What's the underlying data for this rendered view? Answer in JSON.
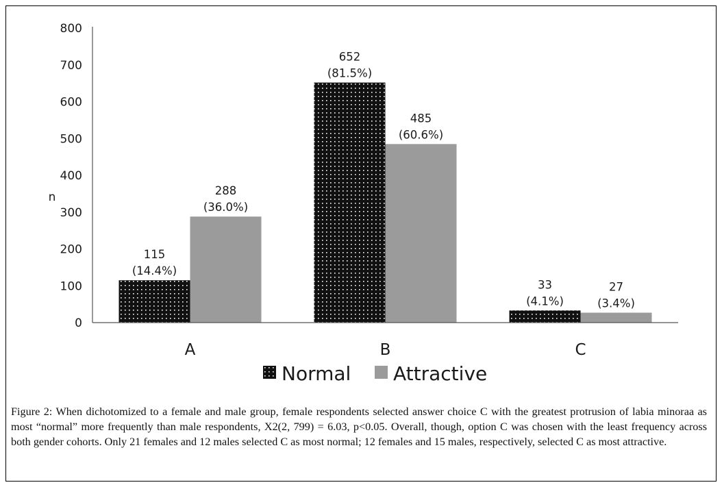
{
  "figure": {
    "caption_label": "Figure 2:",
    "caption_text": "When dichotomized to a female and male group, female respondents selected answer choice C with the greatest protrusion of labia minoraa as most “normal” more frequently than male respondents, X2(2, 799) = 6.03, p<0.05. Overall, though, option C was chosen with the least frequency across both gender cohorts. Only 21 females and 12 males selected C as most normal; 12 females and 15 males, respectively, selected C as most attractive."
  },
  "chart_data": {
    "type": "bar",
    "title": "",
    "xlabel": "",
    "ylabel": "n",
    "ylim": [
      0,
      800
    ],
    "yticks": [
      0,
      100,
      200,
      300,
      400,
      500,
      600,
      700,
      800
    ],
    "categories": [
      "A",
      "B",
      "C"
    ],
    "series": [
      {
        "name": "Normal",
        "color": "#111111",
        "pattern": "dotted",
        "values": [
          115,
          652,
          33
        ],
        "labels": [
          [
            "115",
            "(14.4%)"
          ],
          [
            "652",
            "(81.5%)"
          ],
          [
            "33",
            "(4.1%)"
          ]
        ]
      },
      {
        "name": "Attractive",
        "color": "#9b9b9b",
        "pattern": "solid",
        "values": [
          288,
          485,
          27
        ],
        "labels": [
          [
            "288",
            "(36.0%)"
          ],
          [
            "485",
            "(60.6%)"
          ],
          [
            "27",
            "(3.4%)"
          ]
        ]
      }
    ],
    "legend_position": "bottom-center",
    "grid": false
  }
}
